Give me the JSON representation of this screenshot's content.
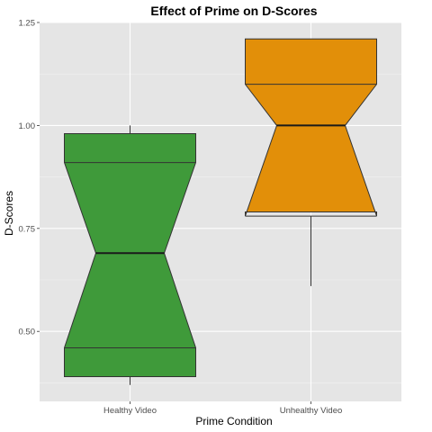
{
  "chart_data": {
    "type": "notched-boxplot",
    "title": "Effect of Prime on D-Scores",
    "xlabel": "Prime Condition",
    "ylabel": "D-Scores",
    "ylim": [
      0.33,
      1.25
    ],
    "yticks": [
      0.5,
      0.75,
      1.0,
      1.25
    ],
    "ytick_labels": [
      "0.50",
      "0.75",
      "1.00",
      "1.25"
    ],
    "grid": true,
    "legend": "none",
    "categories": [
      "Healthy Video",
      "Unhealthy Video"
    ],
    "boxes": [
      {
        "category": "Healthy Video",
        "color": "#3f9a3a",
        "whisker_low": 0.37,
        "q1": 0.46,
        "notch_low": 0.39,
        "median": 0.69,
        "notch_high": 0.98,
        "q3": 0.91,
        "whisker_high": 1.0
      },
      {
        "category": "Unhealthy Video",
        "color": "#e28f09",
        "whisker_low": 0.61,
        "q1": 0.78,
        "notch_low": 0.79,
        "median": 1.0,
        "notch_high": 1.21,
        "q3": 1.1,
        "whisker_high": 1.21
      }
    ]
  }
}
